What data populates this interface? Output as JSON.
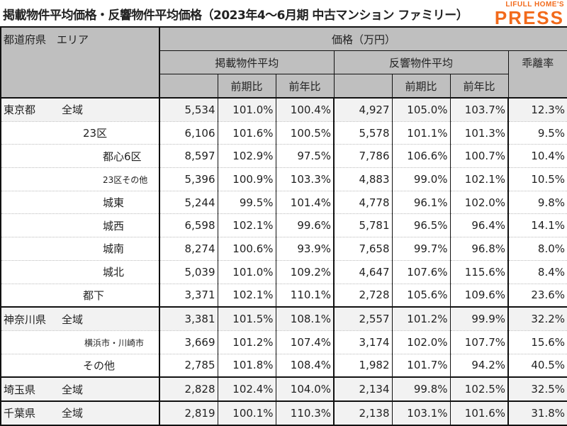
{
  "title": "掲載物件平均価格・反響物件平均価格（2023年4〜6月期 中古マンション ファミリー）",
  "logo": {
    "line1": "LIFULL HOME'S",
    "line2": "PRESS",
    "color": "#f26a1b"
  },
  "header": {
    "pref_area": "都道府県　エリア",
    "price_group": "価格（万円）",
    "listed_avg": "掲載物件平均",
    "inquiry_avg": "反響物件平均",
    "divergence": "乖離率",
    "qoq": "前期比",
    "yoy": "前年比"
  },
  "rows": [
    {
      "pref": "東京都",
      "area": "全域",
      "level": 0,
      "values": [
        "5,534",
        "101.0%",
        "100.4%",
        "4,927",
        "105.0%",
        "103.7%",
        "12.3%"
      ]
    },
    {
      "pref": "",
      "area": "23区",
      "level": 1,
      "values": [
        "6,106",
        "101.6%",
        "100.5%",
        "5,578",
        "101.1%",
        "101.3%",
        "9.5%"
      ]
    },
    {
      "pref": "",
      "area": "都心6区",
      "level": 2,
      "values": [
        "8,597",
        "102.9%",
        "97.5%",
        "7,786",
        "106.6%",
        "100.7%",
        "10.4%"
      ]
    },
    {
      "pref": "",
      "area": "23区その他",
      "level": 2,
      "values": [
        "5,396",
        "100.9%",
        "103.3%",
        "4,883",
        "99.0%",
        "102.1%",
        "10.5%"
      ]
    },
    {
      "pref": "",
      "area": "城東",
      "level": 2,
      "values": [
        "5,244",
        "99.5%",
        "101.4%",
        "4,778",
        "96.1%",
        "102.0%",
        "9.8%"
      ]
    },
    {
      "pref": "",
      "area": "城西",
      "level": 2,
      "values": [
        "6,598",
        "102.1%",
        "99.6%",
        "5,781",
        "96.5%",
        "96.4%",
        "14.1%"
      ]
    },
    {
      "pref": "",
      "area": "城南",
      "level": 2,
      "values": [
        "8,274",
        "100.6%",
        "93.9%",
        "7,658",
        "99.7%",
        "96.8%",
        "8.0%"
      ]
    },
    {
      "pref": "",
      "area": "城北",
      "level": 2,
      "values": [
        "5,039",
        "101.0%",
        "109.2%",
        "4,647",
        "107.6%",
        "115.6%",
        "8.4%"
      ]
    },
    {
      "pref": "",
      "area": "都下",
      "level": 1,
      "values": [
        "3,371",
        "102.1%",
        "110.1%",
        "2,728",
        "105.6%",
        "109.6%",
        "23.6%"
      ]
    },
    {
      "pref": "神奈川県",
      "area": "全域",
      "level": 0,
      "values": [
        "3,381",
        "101.5%",
        "108.1%",
        "2,557",
        "101.2%",
        "99.9%",
        "32.2%"
      ]
    },
    {
      "pref": "",
      "area": "横浜市・川崎市",
      "level": 3,
      "values": [
        "3,669",
        "101.2%",
        "107.4%",
        "3,174",
        "102.0%",
        "107.7%",
        "15.6%"
      ]
    },
    {
      "pref": "",
      "area": "その他",
      "level": 1,
      "values": [
        "2,785",
        "101.8%",
        "108.4%",
        "1,982",
        "101.7%",
        "94.2%",
        "40.5%"
      ]
    },
    {
      "pref": "埼玉県",
      "area": "全域",
      "level": 0,
      "values": [
        "2,828",
        "102.4%",
        "104.0%",
        "2,134",
        "99.8%",
        "102.5%",
        "32.5%"
      ]
    },
    {
      "pref": "千葉県",
      "area": "全域",
      "level": 0,
      "values": [
        "2,819",
        "100.1%",
        "110.3%",
        "2,138",
        "103.1%",
        "101.6%",
        "31.8%"
      ]
    }
  ]
}
